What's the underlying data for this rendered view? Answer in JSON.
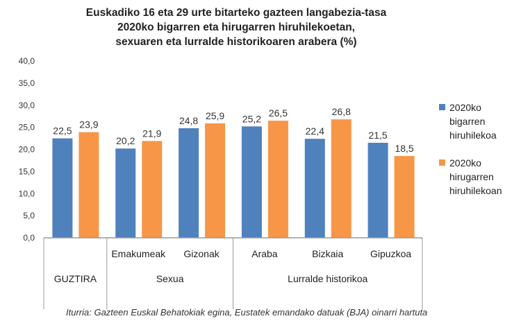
{
  "chart_data": {
    "type": "bar",
    "title": [
      "Euskadiko 16 eta 29 urte bitarteko gazteen langabezia-tasa",
      "2020ko bigarren eta hirugarren hiruhilekoetan,",
      "sexuaren eta lurralde historikoaren arabera (%)"
    ],
    "categories": [
      "GUZTIRA",
      "Emakumeak",
      "Gizonak",
      "Araba",
      "Bizkaia",
      "Gipuzkoa"
    ],
    "groups": [
      {
        "label": "GUZTIRA",
        "span": 1,
        "show_sub": false
      },
      {
        "label": "Sexua",
        "span": 2,
        "show_sub": true
      },
      {
        "label": "Lurralde historikoa",
        "span": 3,
        "show_sub": true
      }
    ],
    "series": [
      {
        "name": "2020ko bigarren hiruhilekoa",
        "name_lines": [
          "2020ko",
          "bigarren",
          "hiruhilekoa"
        ],
        "color": "#4f81bd",
        "values": [
          22.5,
          20.2,
          24.8,
          25.2,
          22.4,
          21.5
        ],
        "labels": [
          "22,5",
          "20,2",
          "24,8",
          "25,2",
          "22,4",
          "21,5"
        ]
      },
      {
        "name": "2020ko hirugarren hiruhilekoan",
        "name_lines": [
          "2020ko",
          "hirugarren",
          "hiruhilekoan"
        ],
        "color": "#f79646",
        "values": [
          23.9,
          21.9,
          25.9,
          26.5,
          26.8,
          18.5
        ],
        "labels": [
          "23,9",
          "21,9",
          "25,9",
          "26,5",
          "26,8",
          "18,5"
        ]
      }
    ],
    "ylim": [
      0,
      40
    ],
    "yticks": [
      "0,0",
      "5,0",
      "10,0",
      "15,0",
      "20,0",
      "25,0",
      "30,0",
      "35,0",
      "40,0"
    ],
    "grid": false,
    "legend": "right"
  },
  "source": "Iturria: Gazteen Euskal Behatokiak egina, Eustatek emandako datuak (BJA) oinarri hartuta"
}
